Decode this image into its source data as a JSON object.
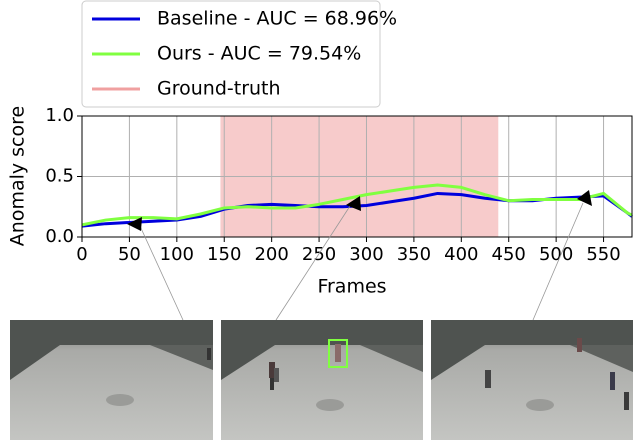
{
  "chart_data": {
    "type": "line",
    "xlabel": "Frames",
    "ylabel": "Anomaly score",
    "x": [
      0,
      25,
      50,
      75,
      100,
      125,
      150,
      175,
      200,
      225,
      250,
      275,
      300,
      325,
      350,
      375,
      400,
      425,
      450,
      475,
      500,
      525,
      550,
      575,
      580
    ],
    "series": [
      {
        "name": "Baseline - AUC = 68.96%",
        "color": "#0000dd",
        "values": [
          0.09,
          0.11,
          0.12,
          0.13,
          0.14,
          0.17,
          0.23,
          0.26,
          0.27,
          0.26,
          0.25,
          0.25,
          0.26,
          0.29,
          0.32,
          0.36,
          0.35,
          0.32,
          0.3,
          0.3,
          0.32,
          0.33,
          0.34,
          0.2,
          0.17
        ]
      },
      {
        "name": "Ours - AUC = 79.54%",
        "color": "#80ff40",
        "values": [
          0.1,
          0.14,
          0.16,
          0.16,
          0.15,
          0.19,
          0.24,
          0.25,
          0.24,
          0.24,
          0.27,
          0.31,
          0.35,
          0.38,
          0.41,
          0.43,
          0.41,
          0.35,
          0.3,
          0.31,
          0.31,
          0.31,
          0.36,
          0.2,
          0.18
        ]
      }
    ],
    "regions": [
      {
        "name": "Ground-truth",
        "color": "#f0a0a0",
        "start": 146,
        "end": 439
      }
    ],
    "xlim": [
      0,
      580
    ],
    "ylim": [
      0,
      1
    ],
    "xticks": [
      0,
      50,
      100,
      150,
      200,
      250,
      300,
      350,
      400,
      450,
      500,
      550
    ],
    "yticks": [
      {
        "value": 0,
        "label": "0.0"
      },
      0.5,
      {
        "value": 1,
        "label": "1.0"
      }
    ],
    "grid": true,
    "legend": "upper left"
  }
}
